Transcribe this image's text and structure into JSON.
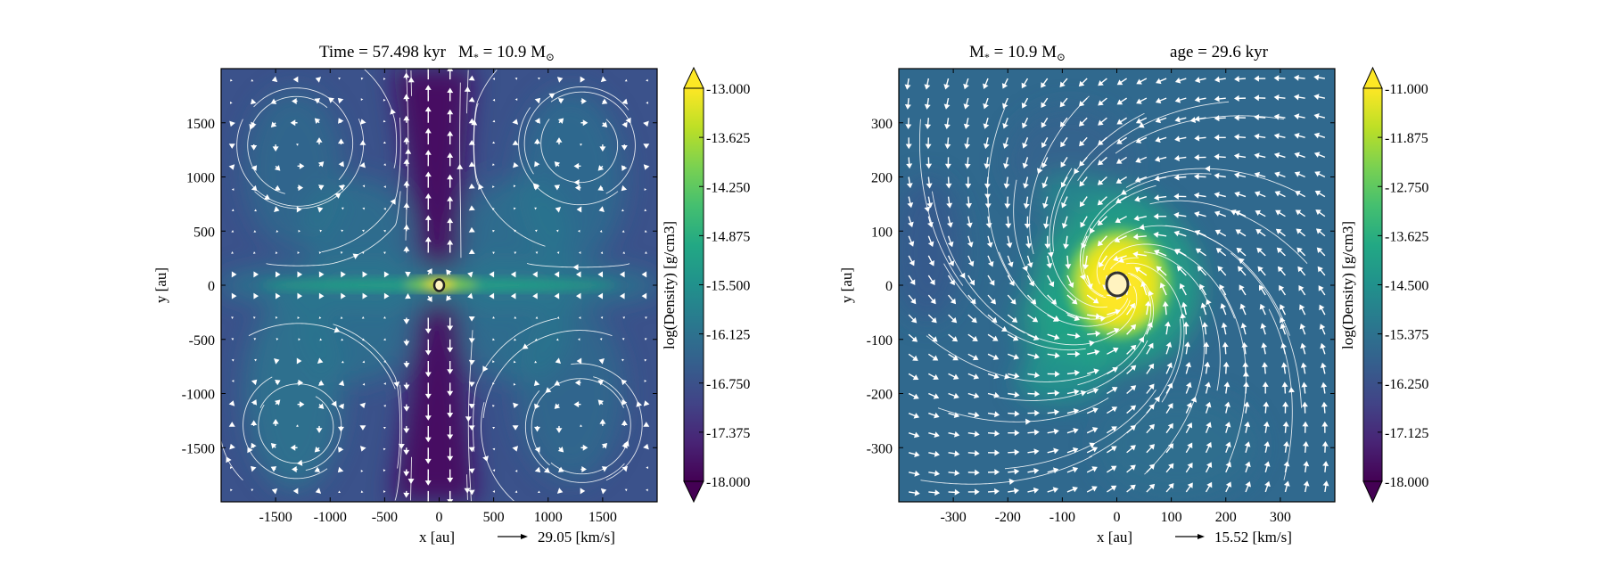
{
  "chart_data": [
    {
      "type": "heatmap",
      "title_parts": {
        "time": "Time = 57.498 kyr",
        "mass_prefix": "M",
        "mass_sub": "*",
        "mass_value": " = 10.9 M",
        "mass_sun": "⊙"
      },
      "xlabel": "x [au]",
      "ylabel": "y [au]",
      "xlim": [
        -2000,
        2000
      ],
      "ylim": [
        -2000,
        2000
      ],
      "xticks": [
        -1500,
        -1000,
        -500,
        0,
        500,
        1000,
        1500
      ],
      "yticks": [
        -1500,
        -1000,
        -500,
        0,
        500,
        1000,
        1500
      ],
      "overlay": [
        "velocity quiver",
        "streamlines"
      ],
      "quiver_key": {
        "label": "29.05 [km/s]",
        "value": 29.05
      },
      "colorbar": {
        "label": "log(Density) [g/cm3]",
        "colormap": "viridis",
        "range": [
          -18.0,
          -13.0
        ],
        "extend": "both",
        "ticks": [
          "-13.000",
          "-13.625",
          "-14.250",
          "-14.875",
          "-15.500",
          "-16.125",
          "-16.750",
          "-17.375",
          "-18.000"
        ]
      },
      "features": {
        "background_log_density": -16.8,
        "bipolar_cavity_log_density": -17.8,
        "disk_log_density": -15.0,
        "center_log_density": -13.3
      }
    },
    {
      "type": "heatmap",
      "title_parts": {
        "mass_prefix": "M",
        "mass_sub": "*",
        "mass_value": " = 10.9 M",
        "mass_sun": "⊙",
        "age": "age = 29.6 kyr"
      },
      "xlabel": "x [au]",
      "ylabel": "y [au]",
      "xlim": [
        -400,
        400
      ],
      "ylim": [
        -400,
        400
      ],
      "xticks": [
        -300,
        -200,
        -100,
        0,
        100,
        200,
        300
      ],
      "yticks": [
        -300,
        -200,
        -100,
        0,
        100,
        200,
        300
      ],
      "overlay": [
        "velocity quiver",
        "streamlines"
      ],
      "quiver_key": {
        "label": "15.52 [km/s]",
        "value": 15.52
      },
      "colorbar": {
        "label": "log(Density) [g/cm3]",
        "colormap": "viridis",
        "range": [
          -18.0,
          -11.0
        ],
        "extend": "both",
        "ticks": [
          "-11.000",
          "-11.875",
          "-12.750",
          "-13.625",
          "-14.500",
          "-15.375",
          "-16.250",
          "-17.125",
          "-18.000"
        ]
      },
      "features": {
        "background_log_density": -15.6,
        "spiral_log_density": -13.6,
        "center_log_density": -11.2
      }
    }
  ],
  "colors": {
    "viridis": [
      "#440154",
      "#482475",
      "#414487",
      "#355f8d",
      "#2a788e",
      "#21918c",
      "#22a884",
      "#44bf70",
      "#7ad151",
      "#bddf26",
      "#fde725"
    ],
    "streamline": "#ffffff",
    "sink_edge": "#222222",
    "sink_fill": "#fff3c0"
  }
}
